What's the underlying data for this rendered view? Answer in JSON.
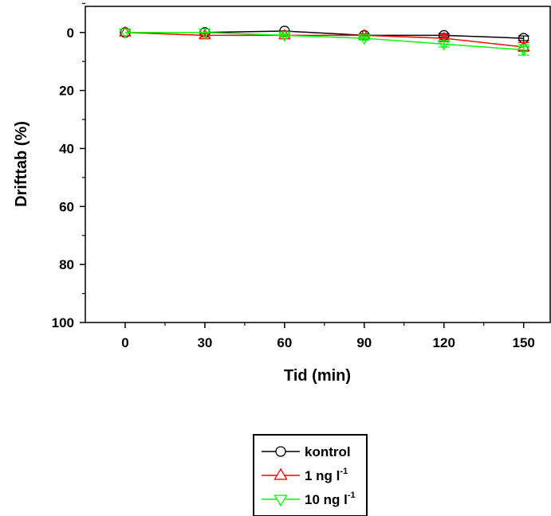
{
  "chart_data": {
    "type": "line",
    "title": "",
    "xlabel": "Tid (min)",
    "ylabel": "Drifttab (%)",
    "x": [
      0,
      30,
      60,
      90,
      120,
      150
    ],
    "x_ticks": [
      "0",
      "30",
      "60",
      "90",
      "120",
      "150"
    ],
    "y_ticks": [
      "0",
      "20",
      "40",
      "60",
      "80",
      "100"
    ],
    "xlim": [
      -15,
      160
    ],
    "ylim": [
      -9,
      100
    ],
    "y_inverted": true,
    "grid": false,
    "legend_position": "bottom-center",
    "series": [
      {
        "name": "kontrol",
        "marker": "circle",
        "color": "#000000",
        "values": [
          0,
          0,
          -0.5,
          1,
          1,
          2
        ],
        "errors": [
          0,
          0,
          0,
          0,
          0.6,
          0.8
        ]
      },
      {
        "name": "1 ng l",
        "superscript": "-1",
        "marker": "triangle-up",
        "color": "#ff0000",
        "values": [
          0,
          1,
          1,
          1,
          2,
          5
        ],
        "errors": [
          0,
          0.6,
          0.5,
          0.5,
          1.2,
          1.5
        ]
      },
      {
        "name": "10 ng l",
        "superscript": "-1",
        "marker": "triangle-down",
        "color": "#00ff00",
        "values": [
          0,
          0,
          1,
          2,
          4,
          6
        ],
        "errors": [
          0,
          0,
          0.5,
          0.6,
          1,
          1.8
        ]
      }
    ]
  }
}
